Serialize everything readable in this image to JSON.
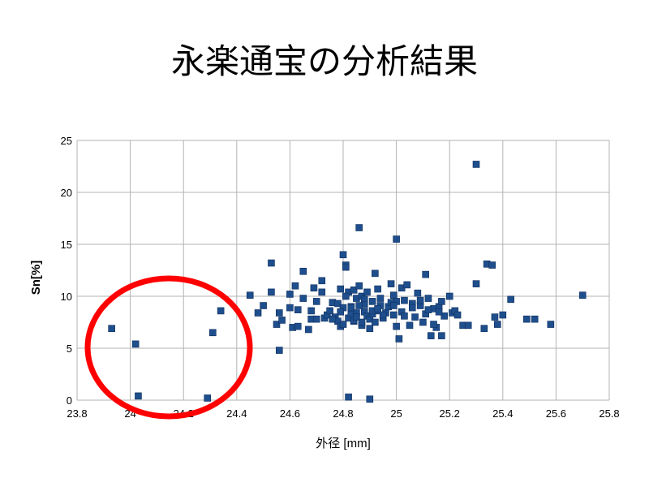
{
  "chart_data": {
    "type": "scatter",
    "title": "永楽通宝の分析結果",
    "xlabel": "外径 [mm]",
    "ylabel": "Sn[%]",
    "xlim": [
      23.8,
      25.8
    ],
    "ylim": [
      0,
      25
    ],
    "xticks": [
      "23.8",
      "24",
      "24.2",
      "24.4",
      "24.6",
      "24.8",
      "25",
      "25.2",
      "25.4",
      "25.6",
      "25.8"
    ],
    "yticks": [
      "0",
      "5",
      "10",
      "15",
      "20",
      "25"
    ],
    "grid": true,
    "marker_color": "#1f4e8c",
    "annotation_color": "#ff0000",
    "series": [
      {
        "x": [
          23.93,
          24.02,
          24.03,
          24.29,
          24.31,
          24.34,
          24.45,
          24.48,
          24.5,
          24.53,
          24.53,
          24.55,
          24.56,
          24.56,
          24.6,
          24.6,
          24.61,
          24.62,
          24.63,
          24.63,
          24.65,
          24.65,
          24.67,
          24.68,
          24.68,
          24.7,
          24.7,
          24.72,
          24.72,
          24.73,
          24.74,
          24.75,
          24.76,
          24.77,
          24.78,
          24.78,
          24.79,
          24.79,
          24.8,
          24.8,
          24.81,
          24.81,
          24.82,
          24.82,
          24.83,
          24.83,
          24.84,
          24.84,
          24.85,
          24.85,
          24.86,
          24.86,
          24.87,
          24.87,
          24.88,
          24.88,
          24.89,
          24.89,
          24.9,
          24.9,
          24.91,
          24.91,
          24.92,
          24.92,
          24.93,
          24.93,
          24.94,
          24.95,
          24.96,
          24.97,
          24.98,
          24.99,
          24.99,
          25.0,
          25.0,
          25.0,
          25.01,
          25.02,
          25.02,
          25.03,
          25.04,
          25.05,
          25.06,
          25.07,
          25.08,
          25.09,
          25.1,
          25.11,
          25.12,
          25.13,
          25.14,
          25.15,
          25.16,
          25.17,
          25.18,
          25.2,
          25.21,
          25.22,
          25.23,
          25.25,
          25.27,
          25.3,
          25.3,
          25.33,
          25.34,
          25.36,
          25.37,
          25.38,
          25.4,
          25.43,
          25.49,
          25.52,
          25.58,
          25.7,
          24.82,
          24.9,
          24.79,
          24.88,
          24.94,
          25.06,
          25.11,
          24.84,
          24.98,
          25.12,
          25.17,
          24.76,
          24.91,
          25.03,
          24.99,
          24.85,
          24.81,
          24.87,
          24.93,
          25.14,
          24.86,
          24.83,
          24.57,
          24.69,
          25.16,
          25.09,
          24.95,
          24.8
        ],
        "y": [
          6.9,
          5.4,
          0.4,
          0.2,
          6.5,
          8.6,
          10.1,
          8.4,
          9.1,
          13.2,
          10.4,
          7.3,
          4.8,
          8.4,
          8.9,
          10.2,
          7.0,
          11.0,
          8.7,
          7.1,
          12.4,
          9.8,
          6.8,
          7.8,
          8.6,
          7.8,
          9.5,
          11.5,
          10.4,
          7.9,
          8.2,
          8.6,
          9.4,
          8.0,
          9.3,
          7.6,
          10.7,
          7.1,
          14.0,
          8.9,
          13.0,
          12.8,
          10.4,
          7.9,
          8.3,
          9.0,
          10.6,
          7.6,
          9.8,
          8.4,
          16.6,
          11.0,
          10.0,
          7.2,
          8.5,
          9.7,
          8.1,
          10.4,
          0.1,
          7.8,
          8.3,
          9.5,
          12.2,
          7.5,
          10.7,
          8.6,
          9.1,
          7.9,
          8.4,
          9.0,
          11.2,
          10.1,
          8.2,
          15.5,
          9.5,
          7.1,
          5.9,
          8.5,
          10.8,
          8.1,
          11.1,
          7.2,
          9.3,
          8.0,
          10.3,
          9.1,
          7.5,
          12.1,
          9.8,
          6.2,
          8.8,
          7.0,
          9.0,
          6.2,
          8.1,
          10.0,
          8.4,
          8.6,
          8.2,
          7.2,
          7.2,
          22.7,
          11.2,
          6.9,
          13.1,
          13.0,
          8.0,
          7.3,
          8.2,
          9.7,
          7.8,
          7.8,
          7.3,
          10.1,
          0.3,
          6.9,
          8.5,
          9.2,
          9.8,
          8.9,
          8.3,
          7.7,
          9.4,
          8.7,
          9.5,
          7.8,
          8.6,
          9.6,
          9.1,
          8.0,
          10.0,
          7.5,
          8.8,
          7.3,
          9.1,
          8.9,
          7.7,
          10.8,
          8.5,
          9.6,
          8.2,
          7.3
        ]
      }
    ]
  }
}
